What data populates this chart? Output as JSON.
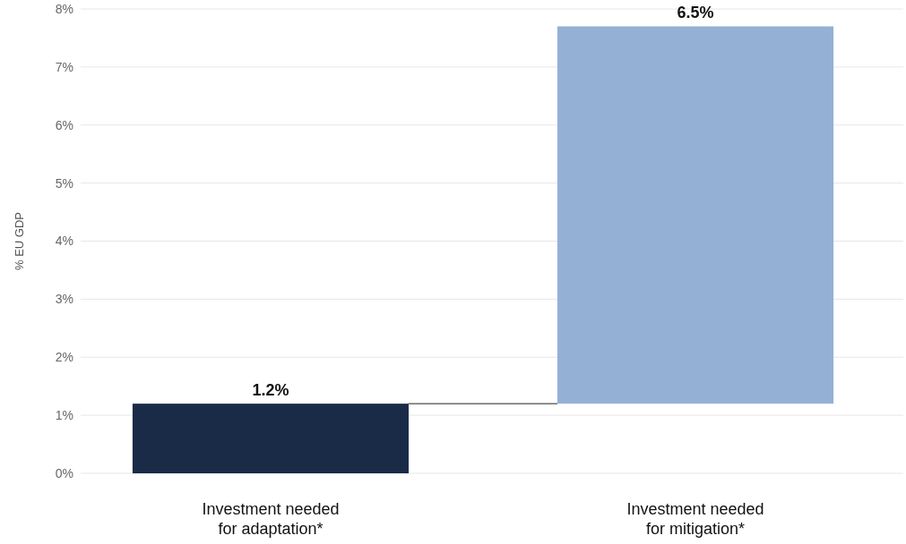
{
  "chart_data": {
    "type": "bar",
    "ylabel": "% EU GDP",
    "categories": [
      "Investment needed\nfor adaptation*",
      "Investment needed\nfor mitigation*"
    ],
    "values": [
      1.2,
      6.5
    ],
    "base": [
      0,
      1.2
    ],
    "colors": [
      "#1a2b48",
      "#94b0d5"
    ],
    "value_labels": [
      "1.2%",
      "6.5%"
    ],
    "ylim": [
      0,
      8
    ],
    "yticks": [
      {
        "value": 0,
        "label": "0%"
      },
      {
        "value": 1,
        "label": "1%"
      },
      {
        "value": 2,
        "label": "2%"
      },
      {
        "value": 3,
        "label": "3%"
      },
      {
        "value": 4,
        "label": "4%"
      },
      {
        "value": 5,
        "label": "5%"
      },
      {
        "value": 6,
        "label": "6%"
      },
      {
        "value": 7,
        "label": "7%"
      },
      {
        "value": 8,
        "label": "8%"
      }
    ],
    "grid": "y"
  }
}
